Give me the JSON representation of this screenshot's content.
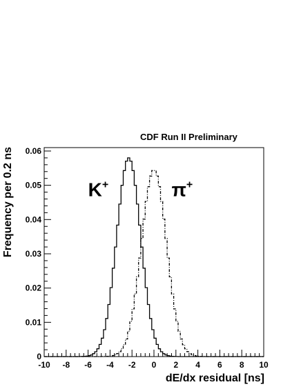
{
  "header": "CDF Run II  Preliminary",
  "colors": {
    "ink": "#000000",
    "background": "#ffffff"
  },
  "chart_data": {
    "type": "histogram",
    "xlabel": "dE/dx residual [ns]",
    "ylabel": "Frequency per 0.2 ns",
    "xlim": [
      -10,
      10
    ],
    "ylim": [
      0,
      0.061
    ],
    "bin_width": 0.2,
    "x_ticks": [
      -10,
      -8,
      -6,
      -4,
      -2,
      0,
      2,
      4,
      6,
      8,
      10
    ],
    "x_tick_labels": [
      "-10",
      "-8",
      "-6",
      "-4",
      "-2",
      "0",
      "2",
      "4",
      "6",
      "8",
      "10"
    ],
    "y_ticks": [
      0,
      0.01,
      0.02,
      0.03,
      0.04,
      0.05,
      0.06
    ],
    "y_tick_labels": [
      "0",
      "0.01",
      "0.02",
      "0.03",
      "0.04",
      "0.05",
      "0.06"
    ],
    "grid": false,
    "annotations": [
      {
        "base": "K",
        "sup": "+",
        "x": -6.0,
        "y": 0.051
      },
      {
        "base": "π",
        "sup": "+",
        "x": 1.6,
        "y": 0.051
      }
    ],
    "series": [
      {
        "label": "K+",
        "line_style": "solid",
        "peak_x": -2.3,
        "peak_y": 0.058,
        "sigma": 1.1
      },
      {
        "label": "π+",
        "line_style": "dash-dot",
        "peak_x": 0.0,
        "peak_y": 0.0545,
        "sigma": 1.15
      }
    ]
  }
}
